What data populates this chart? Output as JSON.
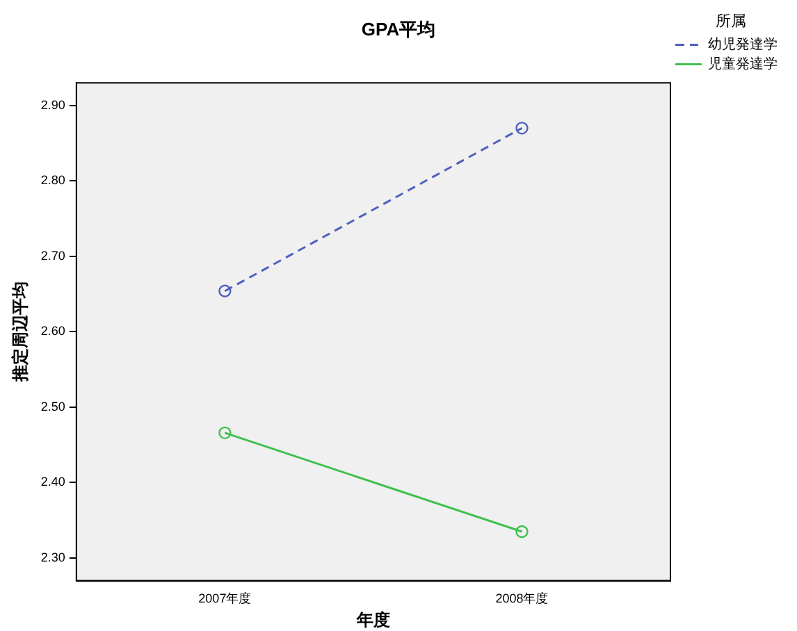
{
  "chart_data": {
    "type": "line",
    "title": "GPA平均",
    "xlabel": "年度",
    "ylabel": "推定周辺平均",
    "legend_title": "所属",
    "categories": [
      "2007年度",
      "2008年度"
    ],
    "series": [
      {
        "name": "幼児発達学",
        "color": "#5060c0",
        "values": [
          2.654,
          2.87
        ],
        "line_style": "dashed"
      },
      {
        "name": "児童発達学",
        "color": "#40c050",
        "values": [
          2.466,
          2.335
        ],
        "line_style": "solid"
      }
    ],
    "ylim": [
      2.27,
      2.93
    ],
    "yticks": [
      {
        "value": 2.3,
        "label": "2.30"
      },
      {
        "value": 2.4,
        "label": "2.40"
      },
      {
        "value": 2.5,
        "label": "2.50"
      },
      {
        "value": 2.6,
        "label": "2.60"
      },
      {
        "value": 2.7,
        "label": "2.70"
      },
      {
        "value": 2.8,
        "label": "2.80"
      },
      {
        "value": 2.9,
        "label": "2.90"
      }
    ],
    "grid": false,
    "legend": "top right",
    "marker": "circle"
  }
}
